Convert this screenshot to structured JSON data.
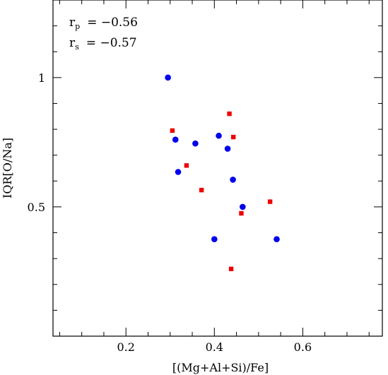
{
  "chart_data": {
    "type": "scatter",
    "xlabel": "[(Mg+Al+Si)/Fe]",
    "ylabel": "IQR[O/Na]",
    "xlim": [
      0.035,
      0.78
    ],
    "ylim": [
      0.0,
      1.3
    ],
    "xticks": [
      {
        "value": 0.2,
        "label": "0.2"
      },
      {
        "value": 0.4,
        "label": "0.4"
      },
      {
        "value": 0.6,
        "label": "0.6"
      }
    ],
    "yticks": [
      {
        "value": 0.5,
        "label": "0.5"
      },
      {
        "value": 1.0,
        "label": "1"
      }
    ],
    "annotations": {
      "rp": {
        "symbol": "r",
        "sub": "p",
        "text": "= −0.56"
      },
      "rs": {
        "symbol": "r",
        "sub": "s",
        "text": "= −0.57"
      }
    },
    "series": [
      {
        "marker": "circle",
        "color": "#0000ee",
        "points": [
          {
            "x": 0.295,
            "y": 1.0
          },
          {
            "x": 0.312,
            "y": 0.76
          },
          {
            "x": 0.318,
            "y": 0.635
          },
          {
            "x": 0.357,
            "y": 0.745
          },
          {
            "x": 0.4,
            "y": 0.375
          },
          {
            "x": 0.41,
            "y": 0.775
          },
          {
            "x": 0.43,
            "y": 0.725
          },
          {
            "x": 0.442,
            "y": 0.605
          },
          {
            "x": 0.464,
            "y": 0.5
          },
          {
            "x": 0.541,
            "y": 0.375
          }
        ]
      },
      {
        "marker": "square",
        "color": "#ee0000",
        "points": [
          {
            "x": 0.305,
            "y": 0.795
          },
          {
            "x": 0.337,
            "y": 0.66
          },
          {
            "x": 0.371,
            "y": 0.565
          },
          {
            "x": 0.434,
            "y": 0.86
          },
          {
            "x": 0.438,
            "y": 0.26
          },
          {
            "x": 0.443,
            "y": 0.77
          },
          {
            "x": 0.461,
            "y": 0.475
          },
          {
            "x": 0.526,
            "y": 0.52
          }
        ]
      }
    ]
  }
}
